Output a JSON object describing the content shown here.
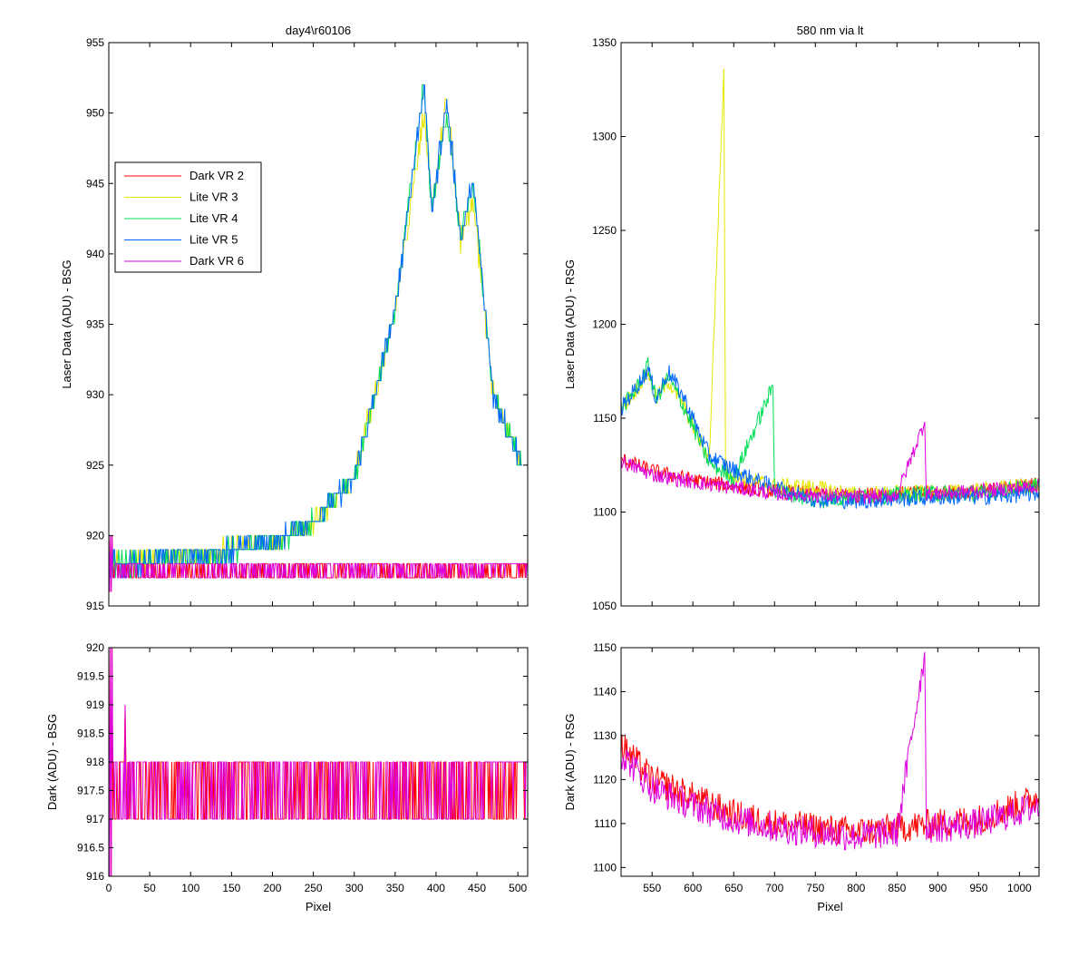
{
  "figure": {
    "background": "#ffffff"
  },
  "series_styles": [
    {
      "name": "Dark VR 2",
      "color": "#ff0000"
    },
    {
      "name": "Lite VR 3",
      "color": "#e6e600"
    },
    {
      "name": "Lite VR 4",
      "color": "#00dd55"
    },
    {
      "name": "Lite VR 5",
      "color": "#0066ff"
    },
    {
      "name": "Dark VR 6",
      "color": "#dd00dd"
    }
  ],
  "chart_data": [
    {
      "id": "top-left",
      "type": "line",
      "title": "day4\\r60106",
      "xlabel": "",
      "ylabel": "Laser Data (ADU) - BSG",
      "xlim": [
        0,
        512
      ],
      "ylim": [
        915,
        955
      ],
      "xticks": [
        0,
        50,
        100,
        150,
        200,
        250,
        300,
        350,
        400,
        450,
        500
      ],
      "yticks": [
        915,
        920,
        925,
        930,
        935,
        940,
        945,
        950,
        955
      ],
      "show_xtick_labels": false,
      "legend": {
        "placement": "upper-left",
        "entries": [
          "Dark VR 2",
          "Lite VR 3",
          "Lite VR 4",
          "Lite VR 5",
          "Dark VR 6"
        ]
      },
      "series": [
        {
          "name": "Dark VR 2",
          "kind": "dark",
          "baseline": 918,
          "noise": [
            917,
            918
          ],
          "x": [
            0,
            512
          ]
        },
        {
          "name": "Lite VR 3",
          "kind": "lite",
          "x": [
            0,
            20,
            100,
            200,
            250,
            300,
            350,
            385,
            395,
            413,
            430,
            445,
            470,
            505
          ],
          "y": [
            918,
            918,
            918.5,
            919.5,
            921,
            924,
            936,
            950,
            943,
            951,
            941,
            944,
            930,
            925
          ]
        },
        {
          "name": "Lite VR 4",
          "kind": "lite",
          "x": [
            0,
            20,
            100,
            200,
            250,
            300,
            350,
            385,
            395,
            413,
            430,
            445,
            470,
            505
          ],
          "y": [
            918,
            918,
            918.5,
            919.5,
            921,
            924,
            936,
            952,
            943,
            950,
            941,
            945,
            930,
            925
          ]
        },
        {
          "name": "Lite VR 5",
          "kind": "lite",
          "x": [
            0,
            20,
            100,
            200,
            250,
            300,
            350,
            385,
            395,
            413,
            430,
            445,
            470,
            505
          ],
          "y": [
            918,
            918,
            918.5,
            919.5,
            921,
            924,
            936,
            952,
            943,
            951,
            941,
            945,
            930,
            925
          ]
        },
        {
          "name": "Dark VR 6",
          "kind": "dark",
          "baseline": 918,
          "noise": [
            917,
            918
          ],
          "x": [
            0,
            512
          ]
        }
      ]
    },
    {
      "id": "top-right",
      "type": "line",
      "title": "580 nm via lt",
      "xlabel": "",
      "ylabel": "Laser Data (ADU) - RSG",
      "xlim": [
        512,
        1024
      ],
      "ylim": [
        1050,
        1350
      ],
      "xticks": [
        550,
        600,
        650,
        700,
        750,
        800,
        850,
        900,
        950,
        1000
      ],
      "yticks": [
        1050,
        1100,
        1150,
        1200,
        1250,
        1300,
        1350
      ],
      "show_xtick_labels": false,
      "series": [
        {
          "name": "Dark VR 2",
          "x": [
            512,
            550,
            600,
            650,
            700,
            750,
            800,
            850,
            900,
            950,
            1024
          ],
          "y": [
            1128,
            1122,
            1117,
            1114,
            1111,
            1110,
            1109,
            1110,
            1110,
            1111,
            1115
          ]
        },
        {
          "name": "Lite VR 3",
          "x": [
            512,
            530,
            545,
            555,
            570,
            590,
            620,
            638,
            640,
            660,
            700,
            750,
            800,
            850,
            900,
            950,
            1024
          ],
          "y": [
            1155,
            1165,
            1175,
            1160,
            1170,
            1155,
            1128,
            1336,
            1122,
            1118,
            1114,
            1113,
            1109,
            1110,
            1110,
            1111,
            1115
          ]
        },
        {
          "name": "Lite VR 4",
          "x": [
            512,
            530,
            545,
            555,
            570,
            590,
            620,
            650,
            698,
            700,
            750,
            800,
            850,
            900,
            950,
            1024
          ],
          "y": [
            1155,
            1165,
            1178,
            1160,
            1172,
            1155,
            1126,
            1118,
            1167,
            1112,
            1106,
            1108,
            1109,
            1110,
            1110,
            1114
          ]
        },
        {
          "name": "Lite VR 5",
          "x": [
            512,
            530,
            545,
            555,
            570,
            590,
            620,
            660,
            700,
            750,
            800,
            850,
            900,
            950,
            1024
          ],
          "y": [
            1155,
            1166,
            1176,
            1160,
            1175,
            1160,
            1130,
            1120,
            1113,
            1107,
            1106,
            1107,
            1108,
            1108,
            1110
          ]
        },
        {
          "name": "Dark VR 6",
          "x": [
            512,
            550,
            600,
            650,
            700,
            750,
            800,
            850,
            884,
            886,
            900,
            950,
            1024
          ],
          "y": [
            1127,
            1120,
            1116,
            1113,
            1110,
            1109,
            1108,
            1109,
            1148,
            1110,
            1110,
            1111,
            1114
          ]
        }
      ]
    },
    {
      "id": "bottom-left",
      "type": "line",
      "title": "",
      "xlabel": "Pixel",
      "ylabel": "Dark (ADU) - BSG",
      "xlim": [
        0,
        512
      ],
      "ylim": [
        916,
        920
      ],
      "xticks": [
        0,
        50,
        100,
        150,
        200,
        250,
        300,
        350,
        400,
        450,
        500
      ],
      "yticks": [
        916,
        916.5,
        917,
        917.5,
        918,
        918.5,
        919,
        919.5,
        920
      ],
      "show_xtick_labels": true,
      "series": [
        {
          "name": "Dark VR 2",
          "kind": "dark",
          "baseline": 918,
          "noise": [
            917,
            918
          ],
          "x": [
            0,
            512
          ]
        },
        {
          "name": "Dark VR 6",
          "kind": "dark",
          "baseline": 918,
          "noise": [
            917,
            918
          ],
          "x": [
            0,
            512
          ]
        }
      ]
    },
    {
      "id": "bottom-right",
      "type": "line",
      "title": "",
      "xlabel": "Pixel",
      "ylabel": "Dark (ADU) - RSG",
      "xlim": [
        512,
        1024
      ],
      "ylim": [
        1098,
        1150
      ],
      "xticks": [
        550,
        600,
        650,
        700,
        750,
        800,
        850,
        900,
        950,
        1000
      ],
      "yticks": [
        1100,
        1110,
        1120,
        1130,
        1140,
        1150
      ],
      "show_xtick_labels": true,
      "series": [
        {
          "name": "Dark VR 2",
          "x": [
            512,
            550,
            600,
            650,
            700,
            750,
            800,
            850,
            900,
            950,
            1024
          ],
          "y": [
            1128,
            1120,
            1116,
            1112,
            1110,
            1109,
            1108,
            1109,
            1110,
            1111,
            1116
          ]
        },
        {
          "name": "Dark VR 6",
          "x": [
            512,
            550,
            600,
            650,
            700,
            750,
            800,
            850,
            884,
            886,
            900,
            950,
            1024
          ],
          "y": [
            1126,
            1118,
            1114,
            1111,
            1109,
            1108,
            1107,
            1108,
            1149,
            1109,
            1109,
            1110,
            1114
          ]
        }
      ]
    }
  ]
}
